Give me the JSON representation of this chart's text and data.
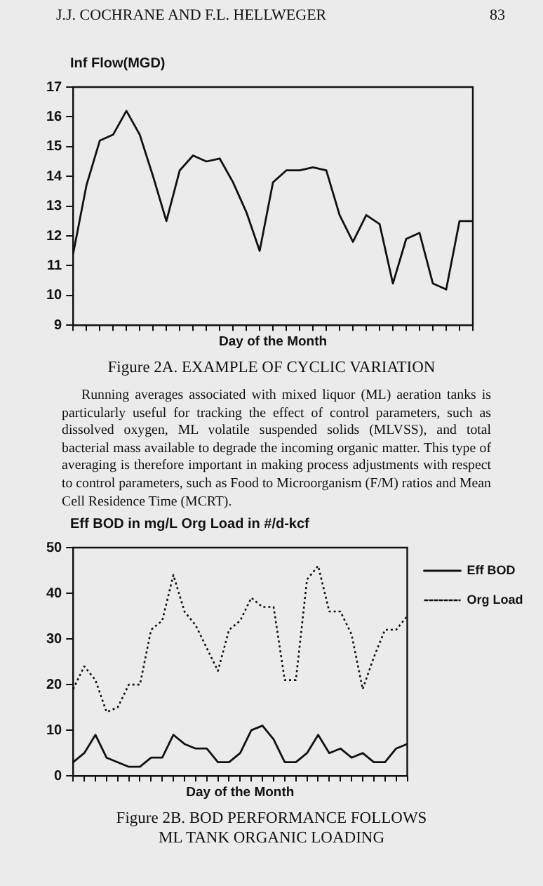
{
  "chart_data": [
    {
      "type": "line",
      "title": "Figure 2A.   EXAMPLE OF CYCLIC VARIATION",
      "xlabel": "Day of the Month",
      "ylabel": "Inf Flow(MGD)",
      "annotations": [
        "J.J. COCHRANE AND F.L. HELLWEGER",
        "83"
      ],
      "categories": [
        null,
        null,
        null,
        null,
        null,
        null,
        null,
        null,
        null,
        null,
        null,
        null,
        null,
        null,
        null,
        null,
        null,
        null,
        null,
        null,
        null,
        null,
        null,
        null,
        null,
        null,
        null,
        null,
        null,
        null,
        null
      ],
      "series": [
        {
          "color": "#111111",
          "values": [
            11.4,
            13.7,
            15.2,
            15.4,
            16.2,
            15.4,
            14.0,
            12.5,
            14.2,
            14.7,
            14.5,
            14.6,
            13.8,
            12.8,
            11.5,
            13.8,
            14.2,
            14.2,
            14.3,
            14.2,
            12.7,
            11.8,
            12.7,
            12.4,
            10.4,
            11.9,
            12.1,
            10.4,
            10.2,
            12.5,
            12.5
          ]
        }
      ],
      "ylim": [
        9,
        17
      ],
      "yticks": [
        9,
        10,
        11,
        12,
        13,
        14,
        15,
        16,
        17
      ],
      "grid": false,
      "legend": false,
      "marker": "none",
      "line_style": "solid",
      "tick_labels": "y"
    },
    {
      "type": "line",
      "title": "Figure 2B.   BOD PERFORMANCE FOLLOWS\nML TANK ORGANIC LOADING",
      "xlabel": "Day of the Month",
      "ylabel": "Eff BOD in mg/L  Org Load in #/d-kcf",
      "annotations": [
        "Running averages associated with mixed liquor (ML) aeration tanks is particularly useful for tracking the effect of control parameters, such as dissolved oxygen, ML volatile suspended solids (MLVSS), and total bacterial mass available to degrade the incoming organic matter. This type of averaging is therefore important in making process adjustments with respect to control parameters, such as Food to Microorganism (F/M) ratios and Mean Cell Residence Time (MCRT)."
      ],
      "categories": [
        null,
        null,
        null,
        null,
        null,
        null,
        null,
        null,
        null,
        null,
        null,
        null,
        null,
        null,
        null,
        null,
        null,
        null,
        null,
        null,
        null,
        null,
        null,
        null,
        null,
        null,
        null,
        null,
        null,
        null,
        null
      ],
      "series": [
        {
          "name": "Eff BOD",
          "color": "#111111",
          "line_style": "solid",
          "values": [
            3,
            5,
            9,
            4,
            3,
            2,
            2,
            4,
            4,
            9,
            7,
            6,
            6,
            3,
            3,
            5,
            10,
            11,
            8,
            3,
            3,
            5,
            9,
            5,
            6,
            4,
            5,
            3,
            3,
            6,
            7
          ]
        },
        {
          "name": "Org Load",
          "color": "#111111",
          "line_style": "dotted",
          "values": [
            19,
            24,
            21,
            14,
            15,
            20,
            20,
            32,
            34,
            44,
            36,
            33,
            28,
            23,
            32,
            34,
            39,
            37,
            37,
            21,
            21,
            43,
            46,
            36,
            36,
            31,
            19,
            26,
            32,
            32,
            35
          ]
        }
      ],
      "ylim": [
        0,
        50
      ],
      "yticks": [
        0,
        10,
        20,
        30,
        40,
        50
      ],
      "grid": false,
      "legend": "right",
      "marker": "none",
      "tick_labels": "y"
    }
  ]
}
